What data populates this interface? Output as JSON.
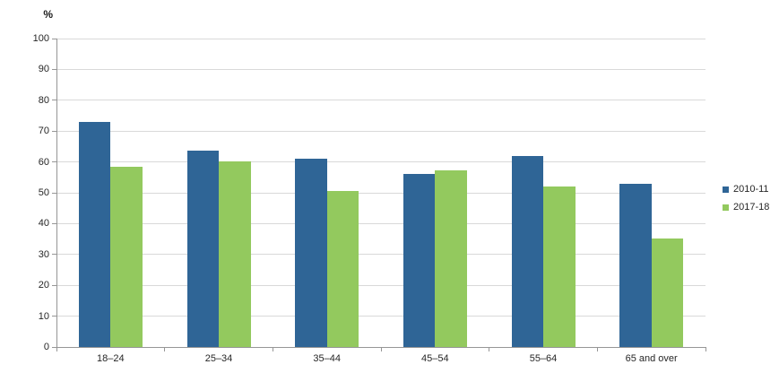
{
  "chart_data": {
    "type": "bar",
    "title": "",
    "xlabel": "",
    "ylabel": "%",
    "categories": [
      "18–24",
      "25–34",
      "35–44",
      "45–54",
      "55–64",
      "65 and over"
    ],
    "series": [
      {
        "name": "2010-11",
        "color": "#2F6596",
        "values": [
          73.0,
          63.8,
          61.0,
          56.0,
          61.8,
          52.8
        ]
      },
      {
        "name": "2017-18",
        "color": "#93C95E",
        "values": [
          58.5,
          60.3,
          50.6,
          57.2,
          51.9,
          35.1
        ]
      }
    ],
    "ylim": [
      0,
      100
    ],
    "ytick_step": 10,
    "grid": true,
    "legend_position": "right",
    "colors": {
      "grid": "#D9D9D9",
      "axis": "#969696",
      "text": "#262626",
      "background": "#FFFFFF"
    }
  }
}
